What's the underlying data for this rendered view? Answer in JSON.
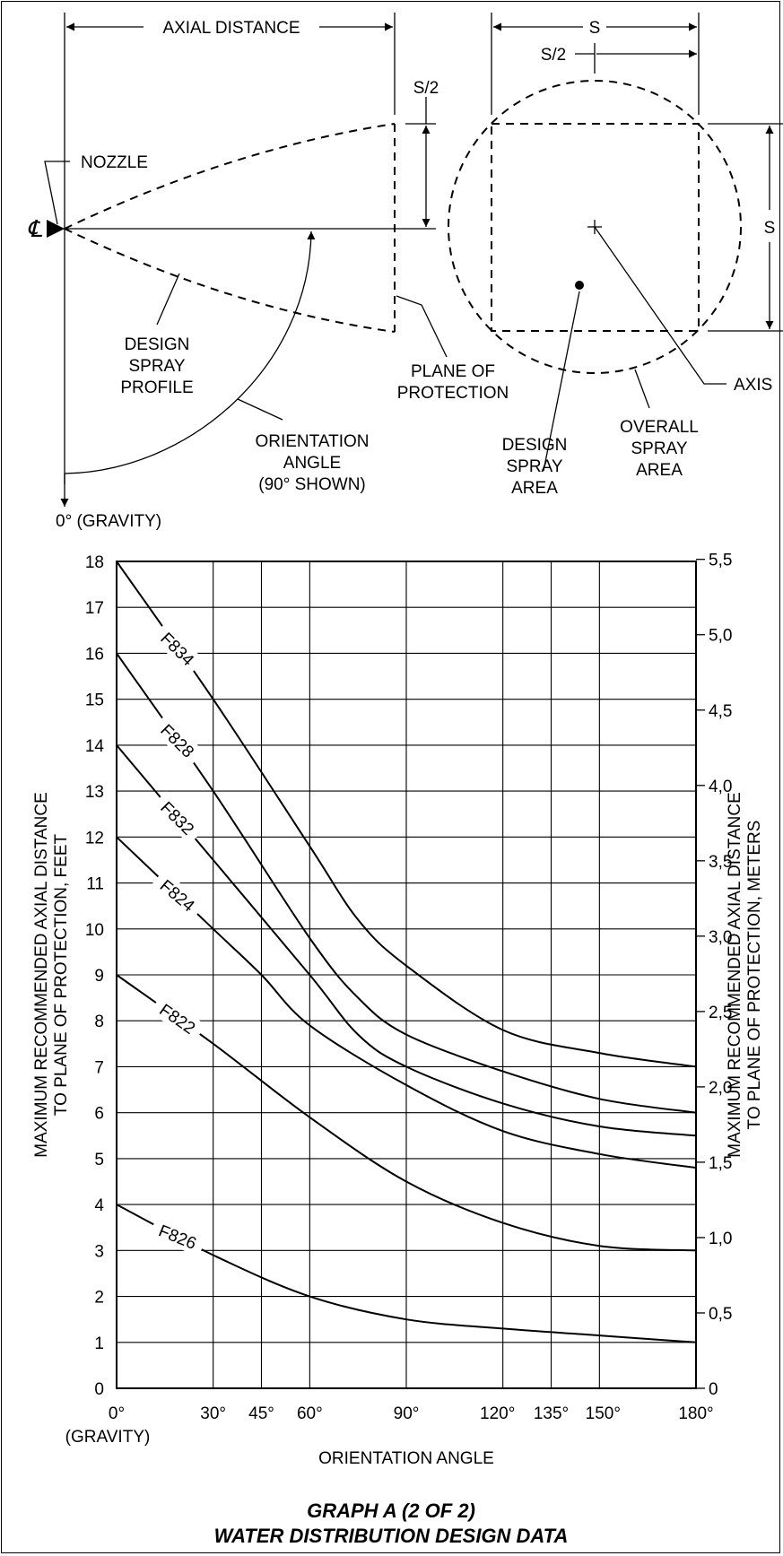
{
  "diagram": {
    "axial_distance": "AXIAL DISTANCE",
    "s": "S",
    "s_half": "S/2",
    "nozzle": "NOZZLE",
    "centerline_symbol": "℄",
    "design_spray_profile": [
      "DESIGN",
      "SPRAY",
      "PROFILE"
    ],
    "plane_of_protection": [
      "PLANE OF",
      "PROTECTION"
    ],
    "orientation_angle": [
      "ORIENTATION",
      "ANGLE",
      "(90° SHOWN)"
    ],
    "gravity": "0°  (GRAVITY)",
    "axis": "AXIS",
    "design_spray_area": [
      "DESIGN",
      "SPRAY",
      "AREA"
    ],
    "overall_spray_area": [
      "OVERALL",
      "SPRAY",
      "AREA"
    ]
  },
  "chart_data": {
    "type": "line",
    "xlabel": "ORIENTATION ANGLE",
    "ylabel": [
      "MAXIMUM RECOMMENDED AXIAL DISTANCE",
      "TO PLANE OF PROTECTION, FEET"
    ],
    "ylabel_right": [
      "MAXIMUM RECOMMENDED AXIAL DISTANCE",
      "TO PLANE OF PROTECTION, METERS"
    ],
    "x_ticks": [
      0,
      30,
      45,
      60,
      90,
      120,
      135,
      150,
      180
    ],
    "x_tick_labels": [
      "0°",
      "30°",
      "45°",
      "60°",
      "90°",
      "120°",
      "135°",
      "150°",
      "180°"
    ],
    "x_tick_sublabel": "(GRAVITY)",
    "xlim": [
      0,
      180
    ],
    "ylim": [
      0,
      18
    ],
    "y_ticks": [
      0,
      1,
      2,
      3,
      4,
      5,
      6,
      7,
      8,
      9,
      10,
      11,
      12,
      13,
      14,
      15,
      16,
      17,
      18
    ],
    "y_tick_labels": [
      "0",
      "1",
      "2",
      "3",
      "4",
      "5",
      "6",
      "7",
      "8",
      "9",
      "10",
      "11",
      "12",
      "13",
      "14",
      "15",
      "16",
      "17",
      "18"
    ],
    "y_right_ticks": [
      0,
      0.5,
      1.0,
      1.5,
      2.0,
      2.5,
      3.0,
      3.5,
      4.0,
      4.5,
      5.0,
      5.5
    ],
    "y_right_tick_labels": [
      "0",
      "0,5",
      "1,0",
      "1,5",
      "2,0",
      "2,5",
      "3,0",
      "3,5",
      "4,0",
      "4,5",
      "5,0",
      "5,5"
    ],
    "y_right_units_per_left_unit": 0.3048,
    "grid": true,
    "series": [
      {
        "name": "F834",
        "label_rotation": 45,
        "x": [
          0,
          30,
          60,
          75,
          90,
          120,
          150,
          180
        ],
        "y": [
          18,
          15,
          11.8,
          10.2,
          9.2,
          7.8,
          7.3,
          7.0
        ]
      },
      {
        "name": "F828",
        "label_rotation": 45,
        "x": [
          0,
          30,
          60,
          75,
          90,
          120,
          150,
          180
        ],
        "y": [
          16,
          13,
          9.8,
          8.5,
          7.7,
          6.9,
          6.3,
          6.0
        ]
      },
      {
        "name": "F832",
        "label_rotation": 45,
        "x": [
          0,
          30,
          60,
          75,
          90,
          120,
          150,
          180
        ],
        "y": [
          14,
          11.5,
          9.0,
          7.7,
          7.0,
          6.2,
          5.7,
          5.5
        ]
      },
      {
        "name": "F824",
        "label_rotation": 40,
        "x": [
          0,
          30,
          45,
          60,
          90,
          120,
          150,
          180
        ],
        "y": [
          12,
          10,
          9.0,
          7.9,
          6.6,
          5.6,
          5.1,
          4.8
        ]
      },
      {
        "name": "F822",
        "label_rotation": 35,
        "x": [
          0,
          30,
          60,
          90,
          120,
          150,
          180
        ],
        "y": [
          9,
          7.5,
          5.9,
          4.5,
          3.6,
          3.1,
          3.0
        ]
      },
      {
        "name": "F826",
        "label_rotation": 22,
        "x": [
          0,
          30,
          60,
          90,
          120,
          150,
          180
        ],
        "y": [
          4,
          2.9,
          2.0,
          1.5,
          1.3,
          1.15,
          1.0
        ]
      }
    ],
    "title": [
      "GRAPH A (2 OF 2)",
      "WATER DISTRIBUTION DESIGN DATA"
    ]
  }
}
